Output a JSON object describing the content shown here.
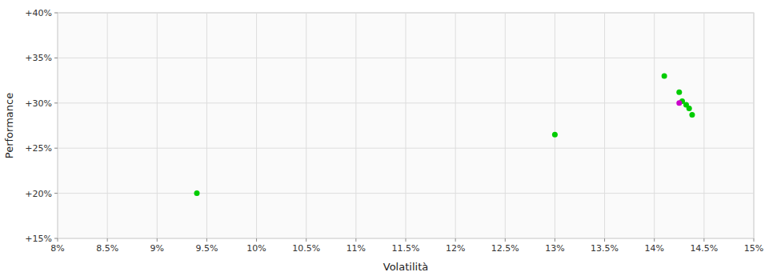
{
  "chart_data": {
    "type": "scatter",
    "xlabel": "Volatilità",
    "ylabel": "Performance",
    "xlim": [
      0.08,
      0.15
    ],
    "ylim": [
      0.15,
      0.4
    ],
    "xticks": [
      {
        "value": 0.08,
        "label": "8%"
      },
      {
        "value": 0.085,
        "label": "8.5%"
      },
      {
        "value": 0.09,
        "label": "9%"
      },
      {
        "value": 0.095,
        "label": "9.5%"
      },
      {
        "value": 0.1,
        "label": "10%"
      },
      {
        "value": 0.105,
        "label": "10.5%"
      },
      {
        "value": 0.11,
        "label": "11%"
      },
      {
        "value": 0.115,
        "label": "11.5%"
      },
      {
        "value": 0.12,
        "label": "12%"
      },
      {
        "value": 0.125,
        "label": "12.5%"
      },
      {
        "value": 0.13,
        "label": "13%"
      },
      {
        "value": 0.135,
        "label": "13.5%"
      },
      {
        "value": 0.14,
        "label": "14%"
      },
      {
        "value": 0.145,
        "label": "14.5%"
      },
      {
        "value": 0.15,
        "label": "15%"
      }
    ],
    "yticks": [
      {
        "value": 0.15,
        "label": "+15%"
      },
      {
        "value": 0.2,
        "label": "+20%"
      },
      {
        "value": 0.25,
        "label": "+25%"
      },
      {
        "value": 0.3,
        "label": "+30%"
      },
      {
        "value": 0.35,
        "label": "+35%"
      },
      {
        "value": 0.4,
        "label": "+40%"
      }
    ],
    "grid": true,
    "series": [
      {
        "color": "#00cc00",
        "x": [
          0.094,
          0.13,
          0.141,
          0.1425,
          0.1428,
          0.1432,
          0.1435,
          0.1438
        ],
        "values": [
          0.2,
          0.265,
          0.33,
          0.312,
          0.302,
          0.298,
          0.294,
          0.287
        ]
      },
      {
        "color": "#cc00cc",
        "x": [
          0.1425
        ],
        "values": [
          0.3
        ]
      }
    ]
  }
}
